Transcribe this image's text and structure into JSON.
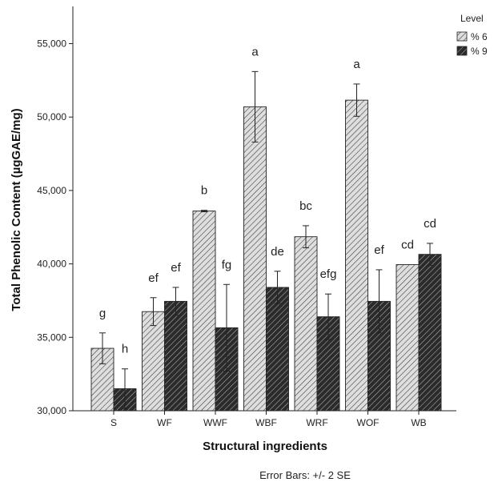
{
  "chart_data": {
    "type": "bar",
    "title": "",
    "xlabel": "Structural ingredients",
    "ylabel": "Total Phenolic Content (µgGAE/mg)",
    "categories": [
      "S",
      "WF",
      "WWF",
      "WBF",
      "WRF",
      "WOF",
      "WB"
    ],
    "ylim": [
      30000,
      57500
    ],
    "yticks": [
      30000,
      35000,
      40000,
      45000,
      50000,
      55000
    ],
    "ytick_labels": [
      "30,000",
      "35,000",
      "40,000",
      "45,000",
      "50,000",
      "55,000"
    ],
    "legend_title": "Level",
    "legend_position": "top-right",
    "series": [
      {
        "name": "% 6",
        "pattern": "light-hatch",
        "values": [
          34250,
          36750,
          43600,
          50700,
          41850,
          51150,
          39950
        ],
        "errors": [
          1050,
          950,
          50,
          2400,
          750,
          1100,
          0
        ],
        "labels": [
          "g",
          "ef",
          "b",
          "a",
          "bc",
          "a",
          "cd"
        ]
      },
      {
        "name": "% 9",
        "pattern": "dark-hatch",
        "values": [
          31500,
          37450,
          35650,
          38400,
          36400,
          37450,
          40650
        ],
        "errors": [
          1350,
          950,
          2950,
          1100,
          1550,
          2150,
          750
        ],
        "labels": [
          "h",
          "ef",
          "fg",
          "de",
          "efg",
          "ef",
          "cd"
        ]
      }
    ],
    "note": "Error Bars: +/- 2 SE",
    "grid": false
  }
}
